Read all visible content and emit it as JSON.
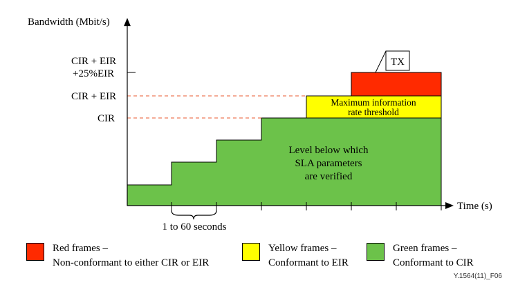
{
  "diagram": {
    "y_axis_label": "Bandwidth (Mbit/s)",
    "x_axis_label": "Time (s)",
    "y_levels": {
      "cir_eir_25_line1": "CIR + EIR",
      "cir_eir_25_line2": "+25%EIR",
      "cir_eir": "CIR + EIR",
      "cir": "CIR"
    },
    "tx_label": "TX",
    "yellow_zone_text": [
      "Maximum information",
      "rate threshold"
    ],
    "green_zone_text": [
      "Level below which",
      "SLA parameters",
      "are verified"
    ],
    "step_duration_label": "1 to 60 seconds",
    "colors": {
      "red": "#ff2a00",
      "yellow": "#ffff00",
      "green": "#6cc24a",
      "dashed_line": "#e8572e"
    }
  },
  "legend": {
    "red": {
      "line1": "Red frames –",
      "line2": "Non-conformant to either CIR or EIR"
    },
    "yellow": {
      "line1": "Yellow frames –",
      "line2": "Conformant to EIR"
    },
    "green": {
      "line1": "Green frames –",
      "line2": "Conformant to CIR"
    }
  },
  "figure_id": "Y.1564(11)_F06"
}
